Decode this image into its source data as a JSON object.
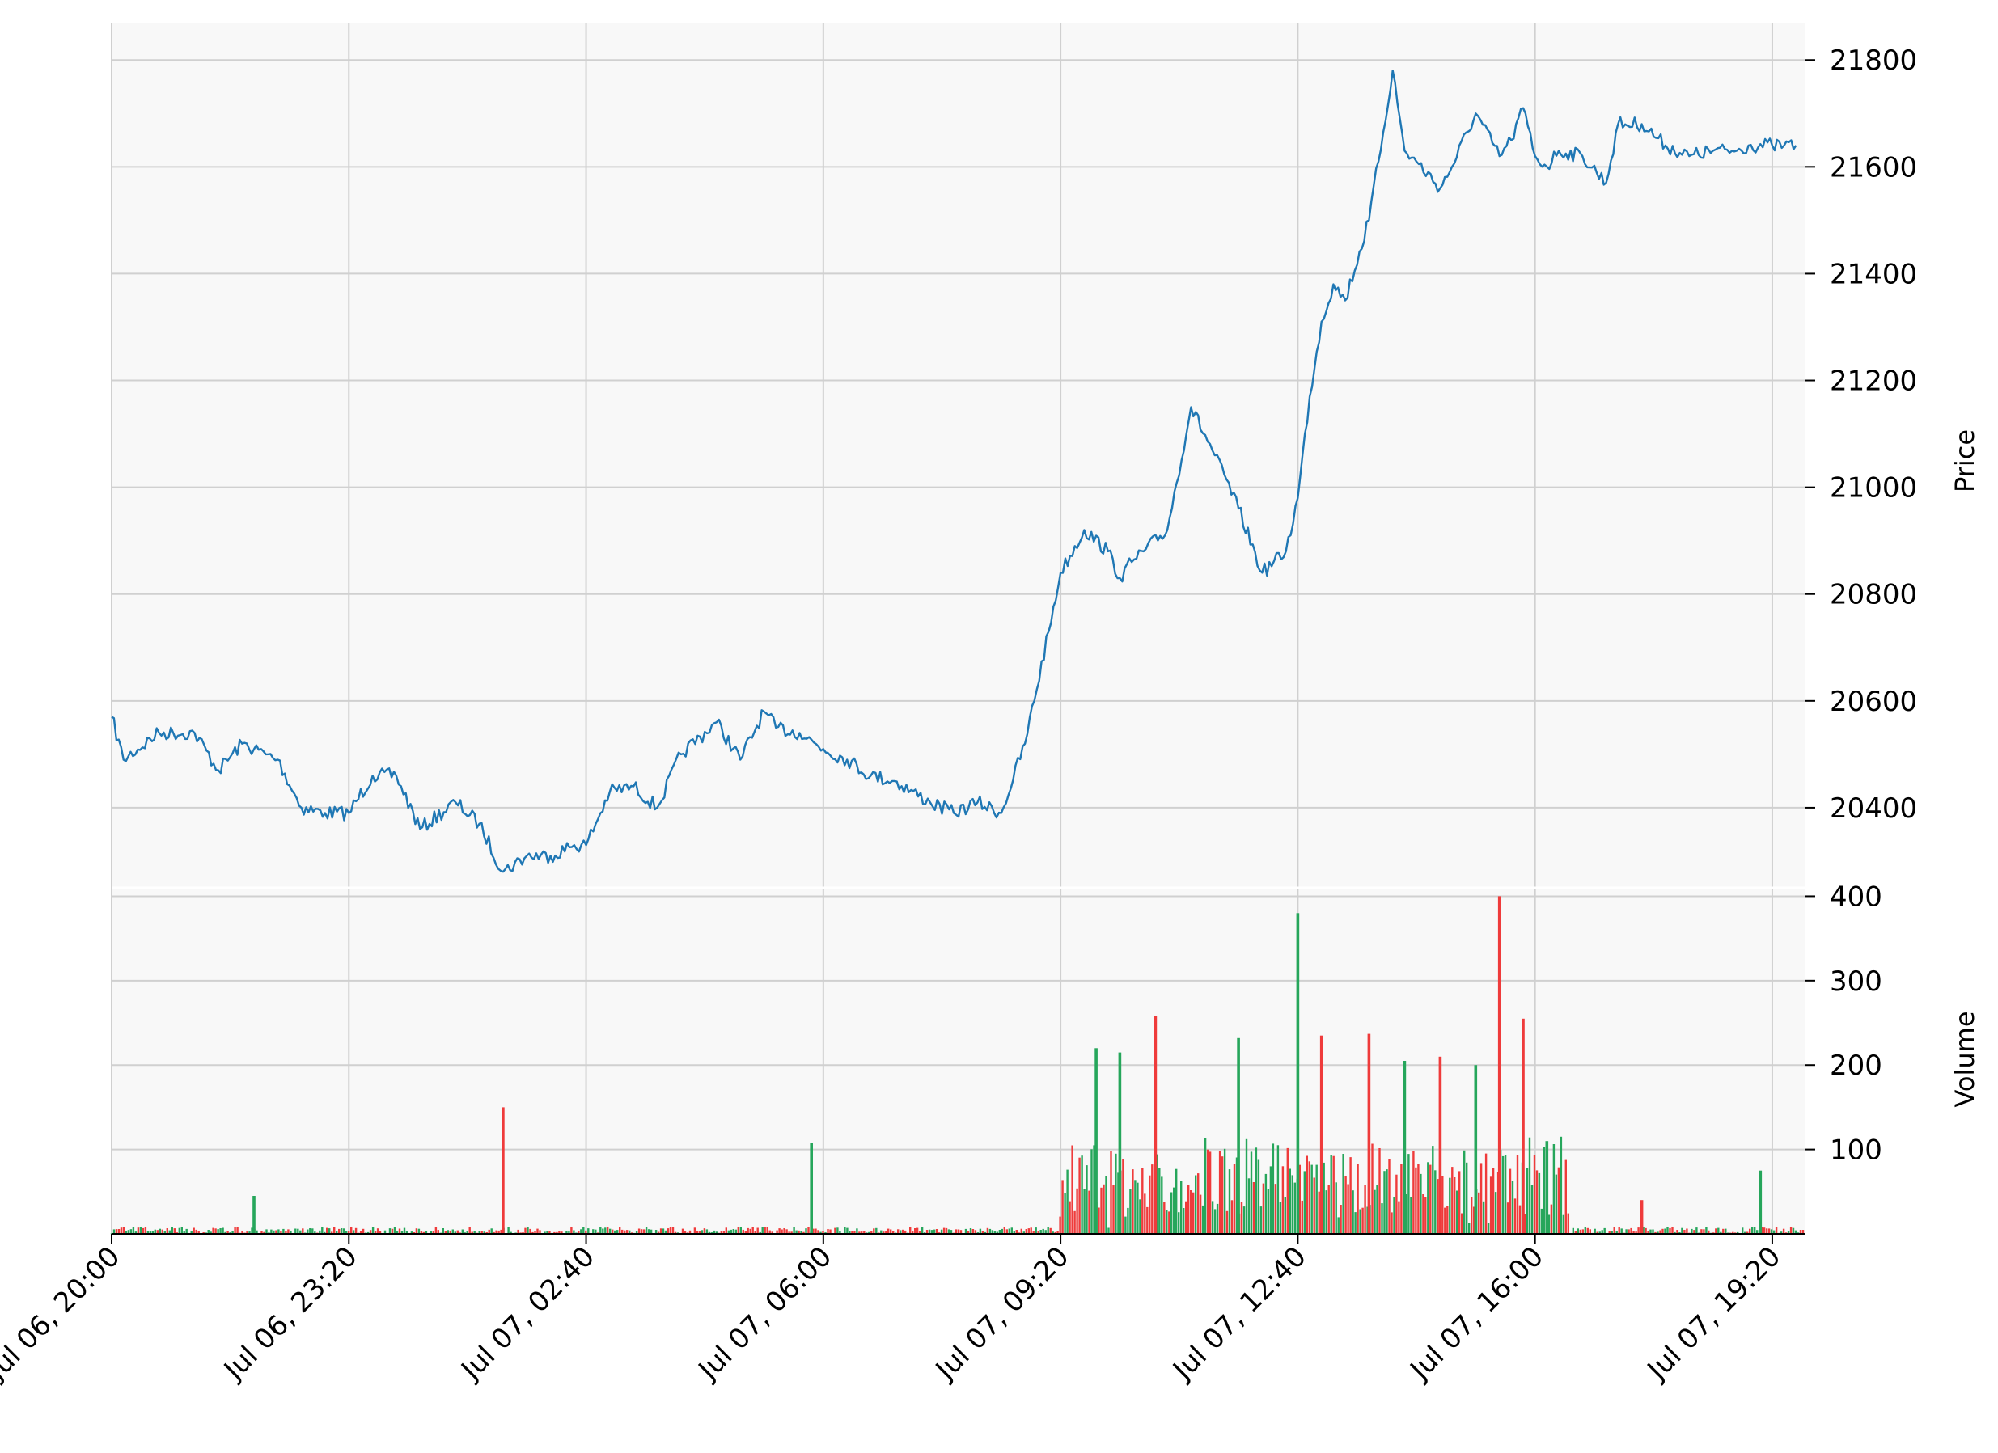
{
  "chart_data": [
    {
      "type": "line",
      "panel": "price",
      "ylabel": "Price",
      "xlabel": "",
      "title": "",
      "ylim": [
        20250,
        21870
      ],
      "yticks": [
        20400,
        20600,
        20800,
        21000,
        21200,
        21400,
        21600,
        21800
      ],
      "line_color": "#1f77b4",
      "background": "#f8f8f8",
      "grid": true,
      "series": [
        {
          "x": [
            "Jul 06, 20:00",
            "Jul 06, 20:10",
            "Jul 06, 20:40",
            "Jul 06, 21:10",
            "Jul 06, 21:30",
            "Jul 06, 21:50",
            "Jul 06, 22:10",
            "Jul 06, 22:20",
            "Jul 06, 22:40",
            "Jul 06, 23:00",
            "Jul 06, 23:20",
            "Jul 06, 23:40",
            "Jul 07, 00:00",
            "Jul 07, 00:20",
            "Jul 07, 00:50",
            "Jul 07, 01:10",
            "Jul 07, 01:30",
            "Jul 07, 01:50",
            "Jul 07, 02:10",
            "Jul 07, 02:30",
            "Jul 07, 02:40",
            "Jul 07, 03:00",
            "Jul 07, 03:20",
            "Jul 07, 03:40",
            "Jul 07, 04:00",
            "Jul 07, 04:30",
            "Jul 07, 04:50",
            "Jul 07, 05:10",
            "Jul 07, 05:20",
            "Jul 07, 05:40",
            "Jul 07, 06:00",
            "Jul 07, 06:20",
            "Jul 07, 06:40",
            "Jul 07, 07:00",
            "Jul 07, 07:30",
            "Jul 07, 07:50",
            "Jul 07, 08:10",
            "Jul 07, 08:30",
            "Jul 07, 08:50",
            "Jul 07, 09:10",
            "Jul 07, 09:20",
            "Jul 07, 09:40",
            "Jul 07, 10:00",
            "Jul 07, 10:10",
            "Jul 07, 10:20",
            "Jul 07, 10:30",
            "Jul 07, 10:50",
            "Jul 07, 11:10",
            "Jul 07, 11:30",
            "Jul 07, 11:50",
            "Jul 07, 12:10",
            "Jul 07, 12:30",
            "Jul 07, 12:40",
            "Jul 07, 12:50",
            "Jul 07, 13:00",
            "Jul 07, 13:10",
            "Jul 07, 13:20",
            "Jul 07, 13:40",
            "Jul 07, 14:00",
            "Jul 07, 14:10",
            "Jul 07, 14:20",
            "Jul 07, 14:40",
            "Jul 07, 14:50",
            "Jul 07, 15:10",
            "Jul 07, 15:30",
            "Jul 07, 15:40",
            "Jul 07, 15:50",
            "Jul 07, 16:00",
            "Jul 07, 16:10",
            "Jul 07, 16:20",
            "Jul 07, 16:40",
            "Jul 07, 17:00",
            "Jul 07, 17:10",
            "Jul 07, 17:30",
            "Jul 07, 17:50",
            "Jul 07, 18:10",
            "Jul 07, 18:30",
            "Jul 07, 18:50",
            "Jul 07, 19:00",
            "Jul 07, 19:20",
            "Jul 07, 19:30",
            "Jul 07, 19:40"
          ],
          "y": [
            20570,
            20490,
            20540,
            20540,
            20470,
            20520,
            20500,
            20490,
            20400,
            20390,
            20390,
            20460,
            20460,
            20360,
            20410,
            20370,
            20280,
            20310,
            20310,
            20330,
            20330,
            20430,
            20440,
            20400,
            20500,
            20560,
            20490,
            20580,
            20550,
            20540,
            20510,
            20490,
            20460,
            20450,
            20410,
            20390,
            20410,
            20390,
            20520,
            20730,
            20840,
            20920,
            20880,
            20830,
            20860,
            20880,
            20920,
            21150,
            21060,
            20960,
            20840,
            20880,
            20980,
            21170,
            21310,
            21380,
            21350,
            21500,
            21780,
            21630,
            21610,
            21560,
            21600,
            21700,
            21620,
            21650,
            21710,
            21620,
            21600,
            21630,
            21620,
            21570,
            21680,
            21680,
            21640,
            21620,
            21630,
            21630,
            21640,
            21640,
            21640,
            21640
          ]
        }
      ]
    },
    {
      "type": "bar",
      "panel": "volume",
      "ylabel": "Volume",
      "xlabel": "",
      "title": "",
      "ylim": [
        0,
        410
      ],
      "yticks": [
        100,
        200,
        300,
        400
      ],
      "up_color": "#26a65b",
      "down_color": "#ef3b3b",
      "background": "#f8f8f8",
      "grid": true,
      "series": [
        {
          "x": [
            "Jul 06, 22:00",
            "Jul 07, 01:30",
            "Jul 07, 05:50",
            "Jul 07, 09:50",
            "Jul 07, 10:10",
            "Jul 07, 10:40",
            "Jul 07, 11:50",
            "Jul 07, 12:40",
            "Jul 07, 13:00",
            "Jul 07, 13:40",
            "Jul 07, 14:10",
            "Jul 07, 14:40",
            "Jul 07, 15:10",
            "Jul 07, 15:30",
            "Jul 07, 15:50",
            "Jul 07, 16:10",
            "Jul 07, 17:30",
            "Jul 07, 19:10"
          ],
          "y": [
            45,
            150,
            108,
            220,
            215,
            258,
            232,
            380,
            235,
            237,
            205,
            210,
            200,
            400,
            255,
            110,
            40,
            75
          ],
          "direction": [
            "up",
            "down",
            "up",
            "up",
            "up",
            "down",
            "up",
            "up",
            "down",
            "down",
            "up",
            "down",
            "up",
            "down",
            "down",
            "up",
            "down",
            "up"
          ]
        }
      ]
    }
  ],
  "x_axis": {
    "ticks": [
      "Jul 06, 20:00",
      "Jul 06, 23:20",
      "Jul 07, 02:40",
      "Jul 07, 06:00",
      "Jul 07, 09:20",
      "Jul 07, 12:40",
      "Jul 07, 16:00",
      "Jul 07, 19:20"
    ]
  }
}
